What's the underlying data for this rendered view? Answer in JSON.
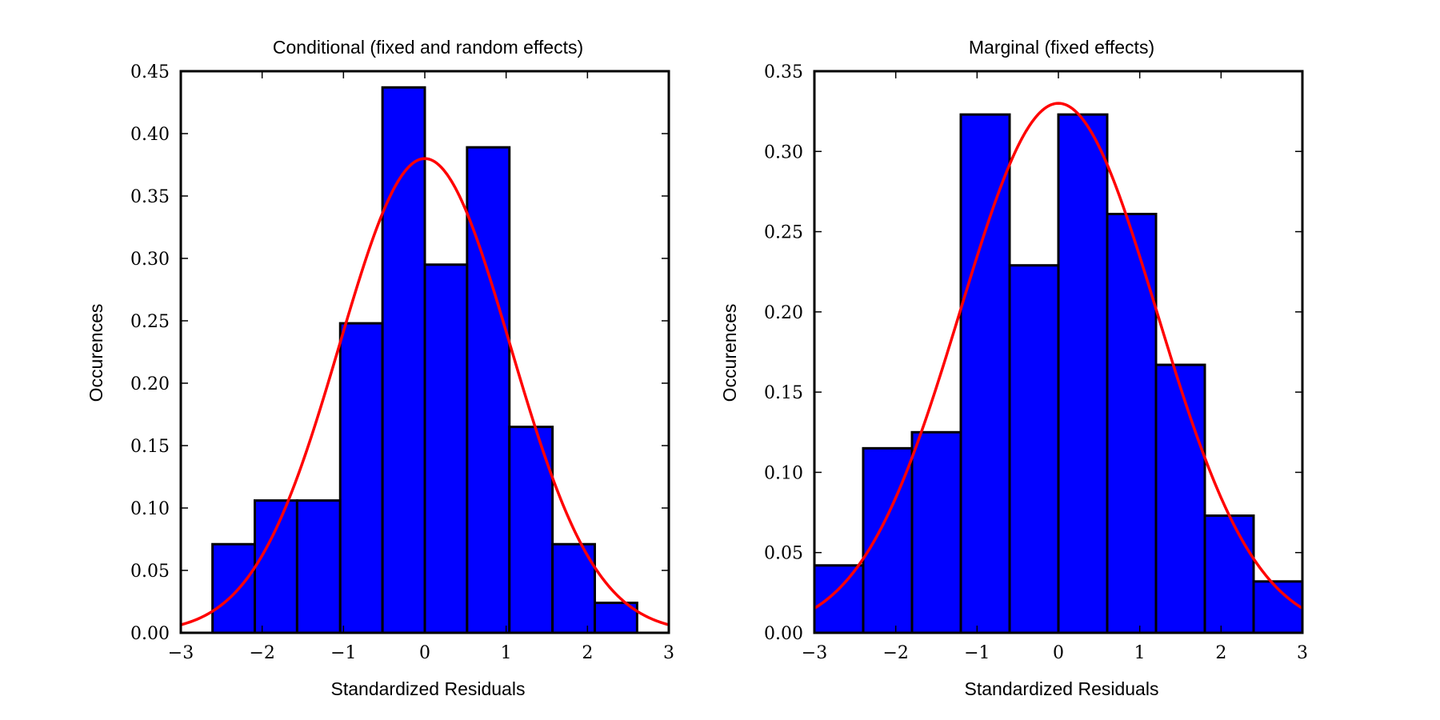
{
  "colors": {
    "bar_fill": "#0000ff",
    "bar_edge": "#000000",
    "curve": "#ff0000",
    "axes": "#000000",
    "background": "#ffffff"
  },
  "chart_data": [
    {
      "type": "bar",
      "title": "Conditional (fixed and random effects)",
      "xlabel": "Standardized Residuals",
      "ylabel": "Occurences",
      "xlim": [
        -3,
        3
      ],
      "ylim": [
        0,
        0.45
      ],
      "xticks": [
        -3,
        -2,
        -1,
        0,
        1,
        2,
        3
      ],
      "xtick_labels": [
        "−3",
        "−2",
        "−1",
        "0",
        "1",
        "2",
        "3"
      ],
      "yticks": [
        0.0,
        0.05,
        0.1,
        0.15,
        0.2,
        0.25,
        0.3,
        0.35,
        0.4,
        0.45
      ],
      "ytick_labels": [
        "0.00",
        "0.05",
        "0.10",
        "0.15",
        "0.20",
        "0.25",
        "0.30",
        "0.35",
        "0.40",
        "0.45"
      ],
      "grid": false,
      "legend": "none",
      "bin_edges": [
        -2.61,
        -2.09,
        -1.57,
        -1.04,
        -0.52,
        0.0,
        0.52,
        1.04,
        1.57,
        2.09,
        2.61
      ],
      "values": [
        0.071,
        0.106,
        0.106,
        0.248,
        0.437,
        0.295,
        0.389,
        0.165,
        0.071,
        0.024
      ],
      "curve": {
        "type": "normal-pdf",
        "mean": 0,
        "peak": 0.38,
        "sd": 1.05
      }
    },
    {
      "type": "bar",
      "title": "Marginal (fixed effects)",
      "xlabel": "Standardized Residuals",
      "ylabel": "Occurences",
      "xlim": [
        -3,
        3
      ],
      "ylim": [
        0,
        0.35
      ],
      "xticks": [
        -3,
        -2,
        -1,
        0,
        1,
        2,
        3
      ],
      "xtick_labels": [
        "−3",
        "−2",
        "−1",
        "0",
        "1",
        "2",
        "3"
      ],
      "yticks": [
        0.0,
        0.05,
        0.1,
        0.15,
        0.2,
        0.25,
        0.3,
        0.35
      ],
      "ytick_labels": [
        "0.00",
        "0.05",
        "0.10",
        "0.15",
        "0.20",
        "0.25",
        "0.30",
        "0.35"
      ],
      "grid": false,
      "legend": "none",
      "bin_edges": [
        -3.0,
        -2.4,
        -1.8,
        -1.2,
        -0.6,
        0.0,
        0.6,
        1.2,
        1.8,
        2.4,
        3.0
      ],
      "values": [
        0.042,
        0.115,
        0.125,
        0.323,
        0.229,
        0.323,
        0.261,
        0.167,
        0.073,
        0.032
      ],
      "curve": {
        "type": "normal-pdf",
        "mean": 0,
        "peak": 0.33,
        "sd": 1.21
      }
    }
  ]
}
